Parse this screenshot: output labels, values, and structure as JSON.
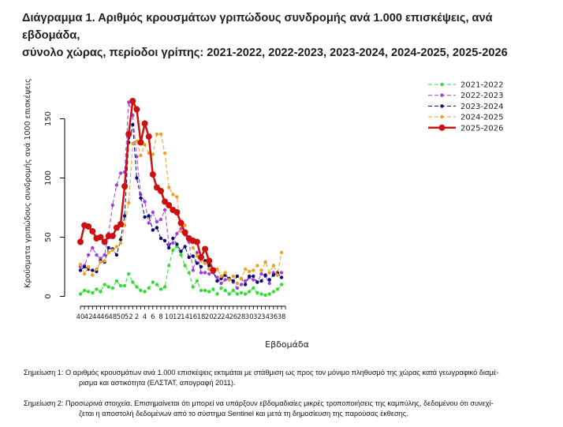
{
  "title_line1": "Διάγραμμα 1. Αριθμός κρουσμάτων γριπώδους συνδρομής ανά 1.000 επισκέψεις, ανά εβδομάδα,",
  "title_line2": "σύνολο χώρας, περίοδοι γρίπης: 2021-2022, 2022-2023, 2023-2024, 2024-2025, 2025-2026",
  "notes": {
    "note1_line1": "Σημείωση 1: Ο αριθμός κρουσμάτων ανά 1.000 επισκέψεις εκτιμάται με στάθμιση ως προς τον μόνιμο πληθυσμό της χώρας κατά γεωγραφικό διαμέ-",
    "note1_line2": "ρισμα και αστικότητα (ΕΛΣΤΑΤ, απογραφή 2011).",
    "note2_line1": "Σημείωση 2: Προσωρινά στοιχεία. Επισημαίνεται ότι μπορεί να υπάρξουν εβδομαδιαίες μικρές τροποποιήσεις της καμπύλης, δεδομένου ότι συνεχί-",
    "note2_line2": "ζεται η αποστολή δεδομένων από το σύστημα Sentinel και μετά τη δημοσίευση της παρούσας έκθεσης."
  },
  "chart_data": {
    "type": "line",
    "title": "",
    "xlabel": "Εβδομάδα",
    "ylabel": "Κρούσματα γριπώδους συνδρομής ανά 1000 επισκέψεις",
    "ylim": [
      0,
      170
    ],
    "yticks": [
      0,
      50,
      100,
      150
    ],
    "x_weeks": [
      40,
      41,
      42,
      43,
      44,
      45,
      46,
      47,
      48,
      49,
      50,
      51,
      52,
      1,
      2,
      3,
      4,
      5,
      6,
      7,
      8,
      9,
      10,
      11,
      12,
      13,
      14,
      15,
      16,
      17,
      18,
      19,
      20,
      21,
      22,
      23,
      24,
      25,
      26,
      27,
      28,
      29,
      30,
      31,
      32,
      33,
      34,
      35,
      36,
      37,
      38,
      39
    ],
    "xtick_labels": [
      "40",
      "42",
      "44",
      "46",
      "48",
      "50",
      "52",
      "2",
      "4",
      "6",
      "8",
      "10",
      "12",
      "14",
      "16",
      "18",
      "20",
      "22",
      "24",
      "26",
      "28",
      "30",
      "32",
      "34",
      "36",
      "38"
    ],
    "grid": false,
    "legend_position": "top-right",
    "series": [
      {
        "name": "2021-2022",
        "color": "#33dd33",
        "line": "dashed",
        "marker": "circle",
        "width": 1,
        "values": [
          2,
          5,
          4,
          3,
          6,
          4,
          10,
          8,
          7,
          13,
          9,
          9,
          19,
          12,
          8,
          5,
          4,
          7,
          12,
          10,
          6,
          8,
          26,
          39,
          42,
          35,
          26,
          20,
          8,
          13,
          5,
          5,
          4,
          6,
          2,
          7,
          5,
          2,
          5,
          2,
          3,
          2,
          4,
          7,
          3,
          2,
          1,
          2,
          4,
          6,
          10
        ]
      },
      {
        "name": "2022-2023",
        "color": "#a040e0",
        "line": "dashed",
        "marker": "circle",
        "width": 1,
        "values": [
          25,
          26,
          35,
          41,
          35,
          32,
          35,
          53,
          77,
          94,
          104,
          105,
          164,
          153,
          118,
          86,
          80,
          62,
          71,
          63,
          65,
          73,
          44,
          45,
          53,
          57,
          52,
          46,
          22,
          37,
          20,
          20,
          19,
          20,
          16,
          11,
          14,
          15,
          12,
          7,
          10,
          13,
          16,
          14,
          12,
          19,
          17,
          11,
          20,
          18,
          20
        ]
      },
      {
        "name": "2023-2024",
        "color": "#0a0a6e",
        "line": "dashed",
        "marker": "circle",
        "width": 1,
        "values": [
          22,
          25,
          23,
          22,
          21,
          30,
          29,
          41,
          40,
          35,
          48,
          68,
          130,
          145,
          100,
          83,
          67,
          68,
          56,
          58,
          49,
          47,
          41,
          49,
          44,
          38,
          42,
          33,
          34,
          28,
          25,
          30,
          26,
          21,
          13,
          15,
          18,
          15,
          13,
          17,
          15,
          10,
          17,
          17,
          12,
          13,
          18,
          14,
          18,
          20,
          16
        ]
      },
      {
        "name": "2024-2025",
        "color": "#f0a020",
        "line": "dashed",
        "marker": "circle",
        "width": 1,
        "values": [
          27,
          19,
          25,
          18,
          23,
          29,
          30,
          37,
          39,
          42,
          45,
          60,
          79,
          129,
          131,
          119,
          128,
          121,
          120,
          137,
          137,
          121,
          92,
          86,
          84,
          55,
          60,
          49,
          41,
          34,
          30,
          28,
          23,
          22,
          23,
          17,
          20,
          14,
          17,
          11,
          15,
          23,
          21,
          22,
          26,
          22,
          29,
          20,
          26,
          18,
          37
        ]
      },
      {
        "name": "2025-2026",
        "color": "#cc1111",
        "line": "solid",
        "marker": "circle",
        "width": 2.5,
        "values": [
          46,
          60,
          59,
          55,
          49,
          50,
          46,
          51,
          51,
          58,
          61,
          93,
          137,
          165,
          158,
          130,
          146,
          135,
          103,
          92,
          89,
          80,
          77,
          73,
          71,
          62,
          54,
          49,
          47,
          46,
          33,
          40,
          30,
          22
        ]
      }
    ]
  }
}
